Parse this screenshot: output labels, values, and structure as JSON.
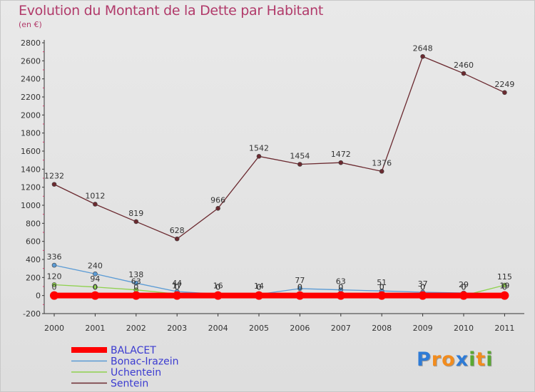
{
  "chart_data": {
    "type": "line",
    "title": "Evolution du Montant de la Dette par Habitant",
    "subtitle": "(en €)",
    "x": [
      "2000",
      "2001",
      "2002",
      "2003",
      "2004",
      "2005",
      "2006",
      "2007",
      "2008",
      "2009",
      "2010",
      "2011"
    ],
    "ylim": [
      -200,
      2800
    ],
    "yticks": [
      -200,
      0,
      200,
      400,
      600,
      800,
      1000,
      1200,
      1400,
      1600,
      1800,
      2000,
      2200,
      2400,
      2600,
      2800
    ],
    "grid": false,
    "legend_position": "bottom-left",
    "series": [
      {
        "name": "BALACET",
        "color": "#ff0000",
        "values": [
          0,
          0,
          0,
          0,
          0,
          0,
          0,
          0,
          0,
          0,
          0,
          0
        ],
        "labels": [
          "0",
          "0",
          "0",
          "0",
          "0",
          "0",
          "0",
          "0",
          "0",
          "0",
          "0",
          "0"
        ]
      },
      {
        "name": "Bonac-Irazein",
        "color": "#5b9bd5",
        "values": [
          336,
          240,
          138,
          44,
          16,
          14,
          77,
          63,
          51,
          37,
          29,
          19
        ],
        "labels": [
          "336",
          "240",
          "138",
          "44",
          "16",
          "14",
          "77",
          "63",
          "51",
          "37",
          "29",
          "19"
        ]
      },
      {
        "name": "Uchentein",
        "color": "#8fd14f",
        "values": [
          120,
          94,
          63,
          17,
          0,
          0,
          0,
          0,
          0,
          0,
          0,
          115
        ],
        "labels": [
          "120",
          "94",
          "63",
          "17",
          "0",
          "0",
          "0",
          "0",
          "0",
          "0",
          "0",
          "115"
        ]
      },
      {
        "name": "Sentein",
        "color": "#6b2a30",
        "values": [
          1232,
          1012,
          819,
          628,
          966,
          1542,
          1454,
          1472,
          1376,
          2648,
          2460,
          2249
        ],
        "labels": [
          "1232",
          "1012",
          "819",
          "628",
          "966",
          "1542",
          "1454",
          "1472",
          "1376",
          "2648",
          "2460",
          "2249"
        ]
      }
    ]
  },
  "logo": {
    "letters": [
      "P",
      "r",
      "o",
      "x",
      "i",
      "t",
      "i"
    ],
    "colors": [
      "#2e7bd6",
      "#f28c1e",
      "#f28c1e",
      "#2e7bd6",
      "#5aa832",
      "#f28c1e",
      "#5aa832"
    ]
  }
}
